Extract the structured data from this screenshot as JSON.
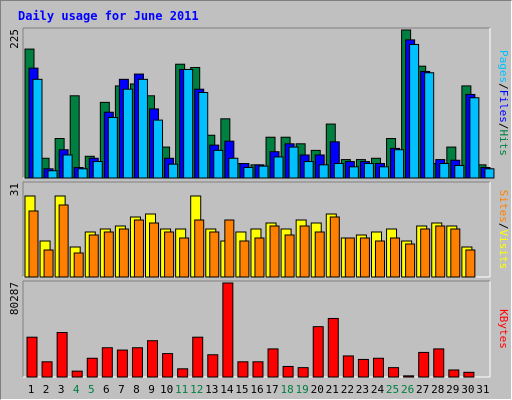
{
  "chart_data": [
    {
      "type": "bar",
      "title": "Daily usage for June 2011",
      "categories": [
        "1",
        "2",
        "3",
        "4",
        "5",
        "6",
        "7",
        "8",
        "9",
        "10",
        "11",
        "12",
        "13",
        "14",
        "15",
        "16",
        "17",
        "18",
        "19",
        "20",
        "21",
        "22",
        "23",
        "24",
        "25",
        "26",
        "27",
        "28",
        "29",
        "30",
        "31"
      ],
      "weekend_days": [
        "4",
        "5",
        "11",
        "12",
        "18",
        "19",
        "25",
        "26"
      ],
      "ylim": [
        0,
        225
      ],
      "ymax_label": "225",
      "right_label": [
        "Pages",
        "/",
        "Files",
        "/",
        "Hits"
      ],
      "series": [
        {
          "name": "Hits",
          "color": "#008040",
          "values": [
            196,
            30,
            60,
            125,
            33,
            115,
            140,
            143,
            125,
            47,
            173,
            168,
            65,
            90,
            22,
            20,
            62,
            62,
            52,
            42,
            82,
            28,
            28,
            30,
            60,
            225,
            170,
            22,
            47,
            140,
            20
          ]
        },
        {
          "name": "Files",
          "color": "#0000ff",
          "values": [
            167,
            14,
            43,
            16,
            30,
            100,
            150,
            158,
            105,
            30,
            165,
            135,
            50,
            56,
            22,
            20,
            40,
            52,
            35,
            35,
            55,
            25,
            25,
            22,
            45,
            210,
            162,
            28,
            27,
            127,
            16
          ]
        },
        {
          "name": "Pages",
          "color": "#00c0ff",
          "values": [
            150,
            11,
            35,
            14,
            25,
            92,
            135,
            150,
            88,
            21,
            165,
            130,
            42,
            30,
            16,
            18,
            32,
            47,
            25,
            20,
            22,
            17,
            22,
            17,
            43,
            203,
            160,
            22,
            19,
            122,
            14
          ]
        }
      ]
    },
    {
      "type": "bar",
      "categories": [
        "1",
        "2",
        "3",
        "4",
        "5",
        "6",
        "7",
        "8",
        "9",
        "10",
        "11",
        "12",
        "13",
        "14",
        "15",
        "16",
        "17",
        "18",
        "19",
        "20",
        "21",
        "22",
        "23",
        "24",
        "25",
        "26",
        "27",
        "28",
        "29",
        "30",
        "31"
      ],
      "ylim": [
        0,
        31
      ],
      "ymax_label": "31",
      "right_label": [
        "Sites",
        "/",
        "Visits"
      ],
      "series": [
        {
          "name": "Visits",
          "color": "#ffff00",
          "values": [
            27,
            12,
            27,
            10,
            15,
            16,
            17,
            20,
            21,
            16,
            16,
            27,
            16,
            12,
            15,
            16,
            18,
            16,
            19,
            18,
            21,
            13,
            14,
            15,
            16,
            12,
            17,
            18,
            17,
            10,
            0
          ]
        },
        {
          "name": "Sites",
          "color": "#ff8000",
          "values": [
            22,
            9,
            24,
            8,
            14,
            15,
            16,
            19,
            18,
            15,
            13,
            19,
            15,
            19,
            12,
            13,
            17,
            14,
            17,
            15,
            20,
            13,
            13,
            12,
            13,
            11,
            16,
            17,
            16,
            9,
            0
          ]
        }
      ]
    },
    {
      "type": "bar",
      "categories": [
        "1",
        "2",
        "3",
        "4",
        "5",
        "6",
        "7",
        "8",
        "9",
        "10",
        "11",
        "12",
        "13",
        "14",
        "15",
        "16",
        "17",
        "18",
        "19",
        "20",
        "21",
        "22",
        "23",
        "24",
        "25",
        "26",
        "27",
        "28",
        "29",
        "30",
        "31"
      ],
      "ylim": [
        0,
        80287
      ],
      "ymax_label": "80287",
      "right_label": [
        "KBytes"
      ],
      "series": [
        {
          "name": "KBytes",
          "color": "#ff0000",
          "values": [
            34000,
            13000,
            38000,
            5000,
            16000,
            25000,
            23000,
            25000,
            31000,
            20000,
            7000,
            34000,
            19000,
            80287,
            13000,
            13000,
            24000,
            9000,
            8000,
            43000,
            50000,
            18000,
            15000,
            16000,
            8000,
            1000,
            21000,
            24000,
            6000,
            4000,
            0
          ]
        }
      ]
    }
  ]
}
